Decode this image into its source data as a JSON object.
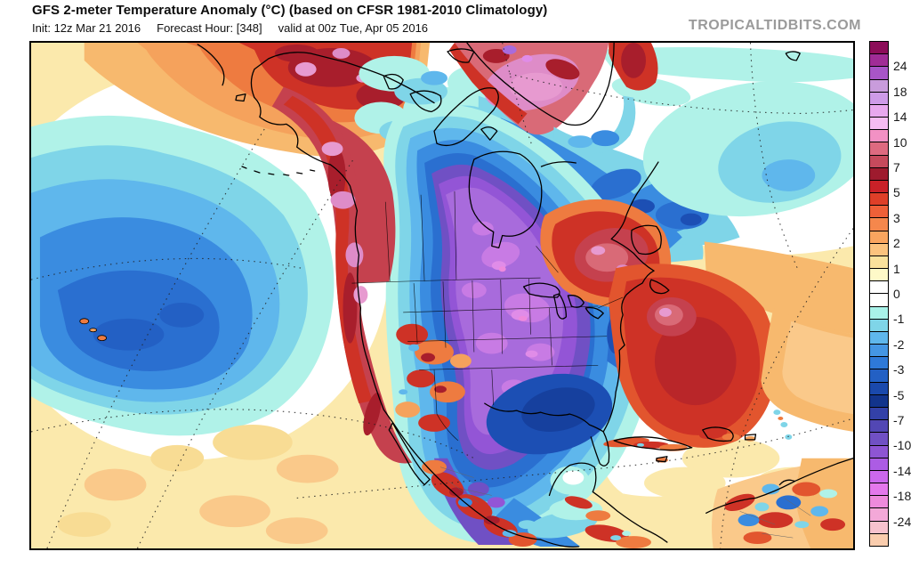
{
  "header": {
    "title": "GFS 2-meter Temperature Anomaly (°C) (based on CFSR 1981-2010 Climatology)",
    "init": "Init: 12z Mar 21 2016",
    "forecast_hour": "Forecast Hour: [348]",
    "valid": "valid at 00z Tue, Apr 05 2016",
    "watermark": "TROPICALTIDBITS.COM"
  },
  "colorbar": {
    "unit": "°C",
    "tick_labels": [
      "24",
      "18",
      "14",
      "10",
      "7",
      "5",
      "3",
      "2",
      "1",
      "0",
      "-1",
      "-2",
      "-3",
      "-5",
      "-7",
      "-10",
      "-14",
      "-18",
      "-24"
    ],
    "cell_colors": [
      "#8C0D59",
      "#A02C96",
      "#A855C8",
      "#C99CDC",
      "#CE9BE8",
      "#E8A8EE",
      "#F6BCF2",
      "#F291C4",
      "#DE6A80",
      "#C64A5C",
      "#9E1B2E",
      "#C92128",
      "#DE3F28",
      "#EE6038",
      "#F5874C",
      "#F9A55F",
      "#FBC37E",
      "#FAE29C",
      "#FEF9C8",
      "#FFFFFF",
      "#FFFFFF",
      "#A9F2E9",
      "#7FD5E8",
      "#5FB7EC",
      "#4496E4",
      "#2E79D8",
      "#2360C4",
      "#1A49AC",
      "#12348C",
      "#3341A8",
      "#5247B4",
      "#7050C4",
      "#8E55D4",
      "#AC5CE4",
      "#CB68EC",
      "#E478EC",
      "#EE8ADC",
      "#F3A8D8",
      "#F7C2CE",
      "#FACDAE"
    ]
  },
  "map": {
    "region": "North America",
    "features": [
      {
        "name": "north-pacific-cold-anomaly",
        "approx_range_c": "-1 to -5",
        "color": "#2A6FD0"
      },
      {
        "name": "alaska-yukon-warm-anomaly",
        "approx_range_c": "+5 to +14",
        "color": "#CE3226"
      },
      {
        "name": "greenland-warm-anomaly",
        "approx_range_c": "+7 to +14",
        "color": "#D96A77"
      },
      {
        "name": "central-north-america-cold-anomaly",
        "approx_range_c": "-10 to -18",
        "color": "#A86BDC"
      },
      {
        "name": "gulf-of-mexico-cold-anomaly",
        "approx_range_c": "-5 to -7",
        "color": "#16409E"
      },
      {
        "name": "quebec-maritimes-warm-anomaly",
        "approx_range_c": "+5 to +10",
        "color": "#C5414E"
      },
      {
        "name": "west-atlantic-warm-anomaly",
        "approx_range_c": "+3 to +7",
        "color": "#CE3226"
      },
      {
        "name": "north-atlantic-cool-patch",
        "approx_range_c": "-1 to -2",
        "color": "#7FD5E8"
      }
    ]
  }
}
